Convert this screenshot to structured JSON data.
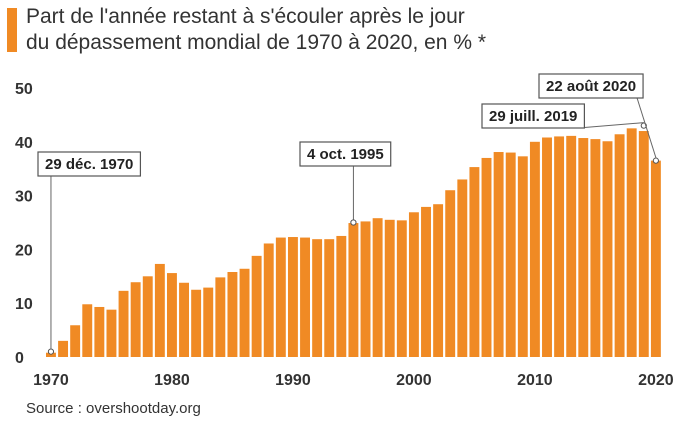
{
  "header": {
    "title_line1": "Part de l'année restant à s'écouler après le jour",
    "title_line2": "du dépassement mondial de 1970 à 2020, en % *"
  },
  "footer": {
    "source": "Source : overshootday.org"
  },
  "colors": {
    "bar": "#f08a24",
    "text": "#333333"
  },
  "chart_data": {
    "type": "bar",
    "title": "Part de l'année restant à s'écouler après le jour du dépassement mondial de 1970 à 2020, en % *",
    "xlabel": "",
    "ylabel": "",
    "ylim": [
      0,
      50
    ],
    "yticks": [
      "0",
      "10",
      "20",
      "30",
      "40",
      "50"
    ],
    "xticks": [
      {
        "year": 1970,
        "label": "1970"
      },
      {
        "year": 1980,
        "label": "1980"
      },
      {
        "year": 1990,
        "label": "1990"
      },
      {
        "year": 2000,
        "label": "2000"
      },
      {
        "year": 2010,
        "label": "2010"
      },
      {
        "year": 2020,
        "label": "2020"
      }
    ],
    "categories": [
      1970,
      1971,
      1972,
      1973,
      1974,
      1975,
      1976,
      1977,
      1978,
      1979,
      1980,
      1981,
      1982,
      1983,
      1984,
      1985,
      1986,
      1987,
      1988,
      1989,
      1990,
      1991,
      1992,
      1993,
      1994,
      1995,
      1996,
      1997,
      1998,
      1999,
      2000,
      2001,
      2002,
      2003,
      2004,
      2005,
      2006,
      2007,
      2008,
      2009,
      2010,
      2011,
      2012,
      2013,
      2014,
      2015,
      2016,
      2017,
      2018,
      2019,
      2020
    ],
    "values": [
      0.8,
      3.0,
      5.9,
      9.8,
      9.3,
      8.8,
      12.3,
      13.9,
      15.0,
      17.3,
      15.6,
      13.8,
      12.5,
      12.9,
      14.8,
      15.8,
      16.4,
      18.8,
      21.1,
      22.2,
      22.3,
      22.2,
      21.9,
      21.9,
      22.5,
      24.9,
      25.2,
      25.8,
      25.5,
      25.4,
      26.9,
      27.9,
      28.4,
      31.0,
      33.0,
      35.3,
      37.0,
      38.1,
      38.0,
      37.3,
      40.0,
      40.8,
      41.0,
      41.1,
      40.7,
      40.5,
      40.1,
      41.4,
      42.5,
      42.0,
      36.5
    ],
    "annotations": [
      {
        "label": "29 déc. 1970",
        "year": 1970,
        "value": 1.0
      },
      {
        "label": "4 oct. 1995",
        "year": 1995,
        "value": 25.0
      },
      {
        "label": "29 juill. 2019",
        "year": 2019,
        "value": 43.0
      },
      {
        "label": "22 août 2020",
        "year": 2020,
        "value": 36.5
      }
    ]
  }
}
